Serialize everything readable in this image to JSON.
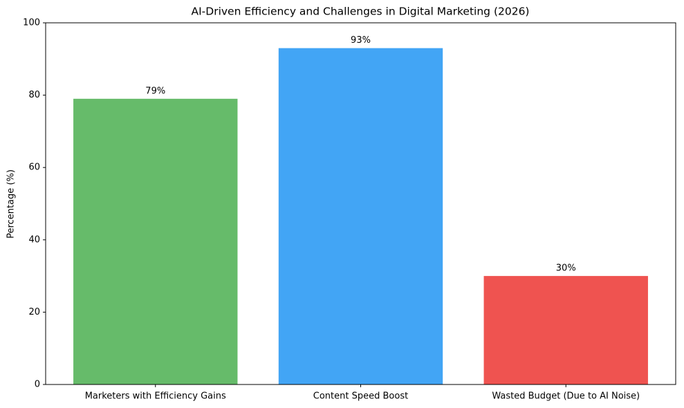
{
  "chart_data": {
    "type": "bar",
    "title": "AI-Driven Efficiency and Challenges in Digital Marketing (2026)",
    "y_label": "Percentage (%)",
    "categories": [
      "Marketers with Efficiency Gains",
      "Content Speed Boost",
      "Wasted Budget (Due to AI Noise)"
    ],
    "values": [
      79,
      93,
      30
    ],
    "value_labels": [
      "79%",
      "93%",
      "30%"
    ],
    "colors": [
      "#66bb6a",
      "#42a5f5",
      "#ef5350"
    ],
    "ylim": [
      0,
      100
    ],
    "yticks": [
      0,
      20,
      40,
      60,
      80,
      100
    ],
    "grid": false
  }
}
